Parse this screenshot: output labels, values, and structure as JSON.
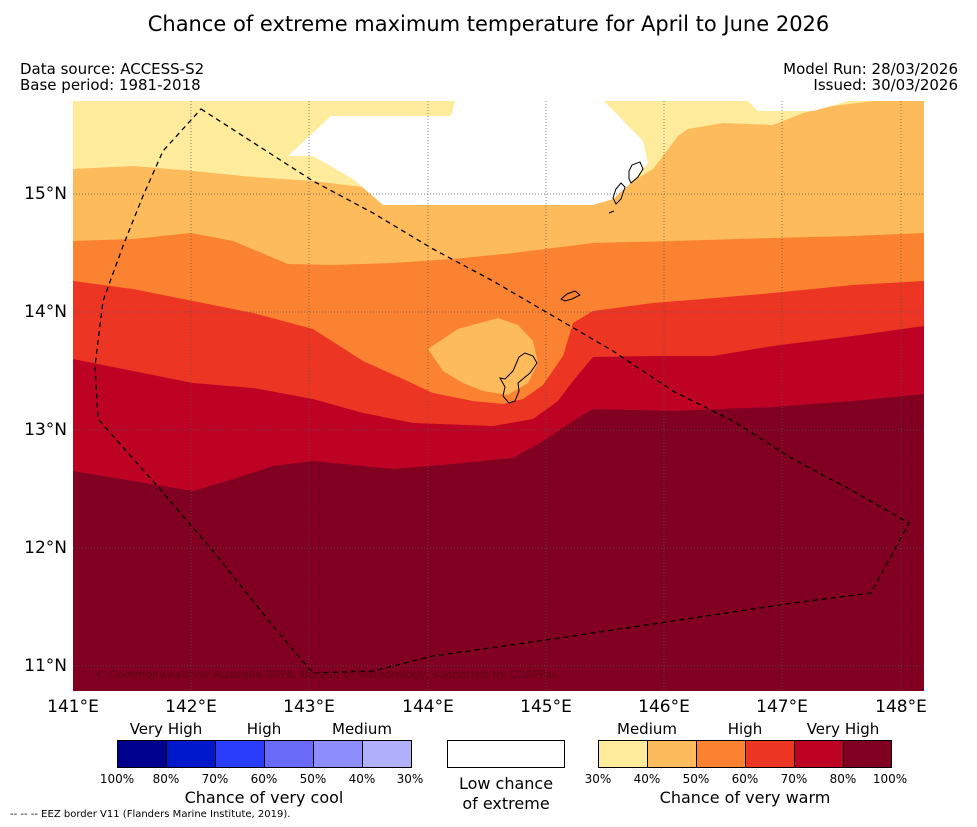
{
  "title": "Chance of extreme maximum temperature for April to June 2026",
  "header": {
    "data_source": "Data source: ACCESS-S2",
    "base_period": "Base period: 1981-2018",
    "model_run": "Model Run: 28/03/2026",
    "issued": "Issued: 30/03/2026"
  },
  "map": {
    "lat_labels": [
      "15°N",
      "14°N",
      "13°N",
      "12°N",
      "11°N"
    ],
    "lon_labels": [
      "141°E",
      "142°E",
      "143°E",
      "144°E",
      "145°E",
      "146°E",
      "147°E",
      "148°E"
    ],
    "copyright": "© Commonwealth of Australia 2026, Bureau of Meteorology, supported by COSPPac"
  },
  "legend": {
    "cool": {
      "categories": [
        "Very High",
        "High",
        "Medium"
      ],
      "ticks": [
        "100%",
        "80%",
        "70%",
        "60%",
        "50%",
        "40%",
        "30%"
      ],
      "colors": [
        "#00008f",
        "#0018cc",
        "#2a3dfc",
        "#6a6af9",
        "#8d8dfb",
        "#b0b0fd"
      ],
      "title": "Chance of very cool"
    },
    "low": {
      "line1": "Low chance",
      "line2": "of extreme"
    },
    "warm": {
      "categories": [
        "Medium",
        "High",
        "Very High"
      ],
      "ticks": [
        "30%",
        "40%",
        "50%",
        "60%",
        "70%",
        "80%",
        "100%"
      ],
      "colors": [
        "#ffeb9c",
        "#fdbb5b",
        "#fb8231",
        "#ec3623",
        "#bd0224",
        "#810021"
      ],
      "title": "Chance of very warm"
    },
    "eez_note": "--  --  -- EEZ border V11 (Flanders Marine Institute, 2019)."
  }
}
